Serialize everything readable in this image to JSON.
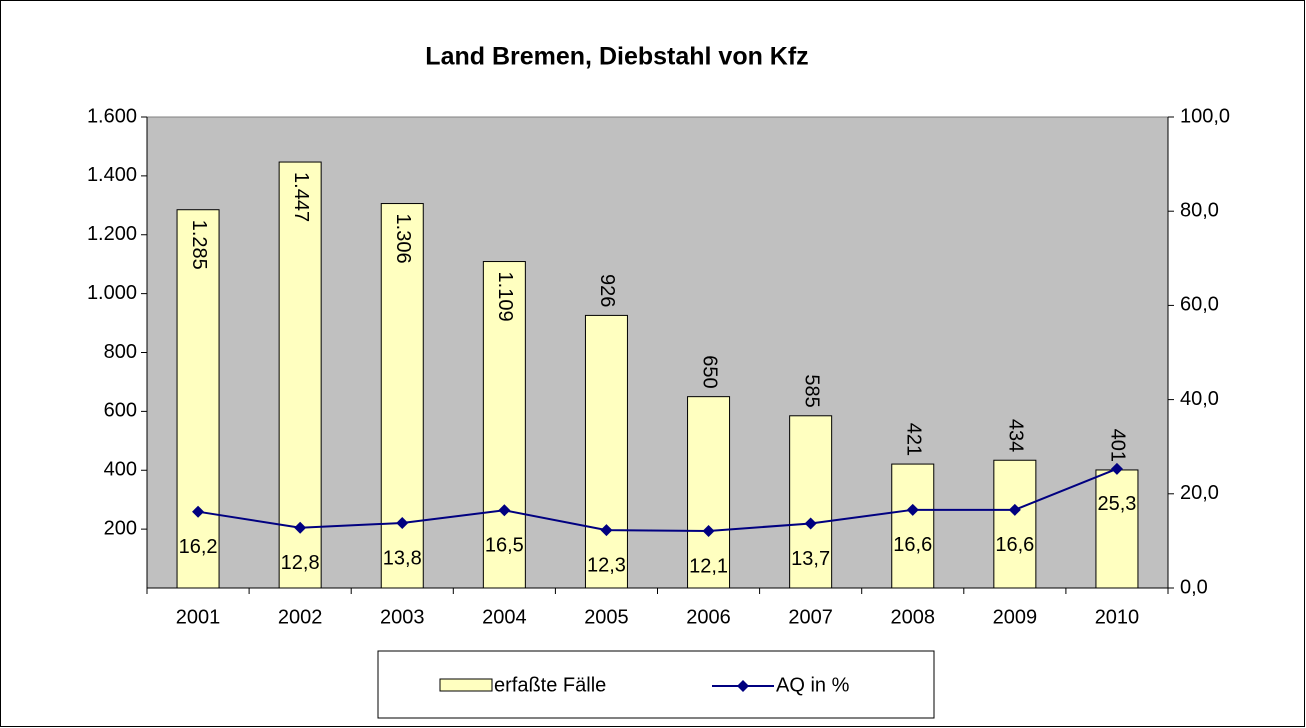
{
  "chart_data": {
    "type": "bar_line",
    "title": "Land Bremen, Diebstahl von Kfz",
    "categories": [
      "2001",
      "2002",
      "2003",
      "2004",
      "2005",
      "2006",
      "2007",
      "2008",
      "2009",
      "2010"
    ],
    "series": [
      {
        "name": "erfaßte Fälle",
        "type": "bar",
        "color": "#ffffc0",
        "values": [
          1285,
          1447,
          1306,
          1109,
          926,
          650,
          585,
          421,
          434,
          401
        ],
        "value_labels": [
          "1.285",
          "1.447",
          "1.306",
          "1.109",
          "926",
          "650",
          "585",
          "421",
          "434",
          "401"
        ]
      },
      {
        "name": "AQ in %",
        "type": "line",
        "axis": "y2",
        "color": "#000080",
        "values": [
          16.2,
          12.8,
          13.8,
          16.5,
          12.3,
          12.1,
          13.7,
          16.6,
          16.6,
          25.3
        ],
        "value_labels": [
          "16,2",
          "12,8",
          "13,8",
          "16,5",
          "12,3",
          "12,1",
          "13,7",
          "16,6",
          "16,6",
          "25,3"
        ]
      }
    ],
    "ylim": [
      0,
      1600
    ],
    "yticks": [
      {
        "value": 200,
        "label": "200"
      },
      {
        "value": 400,
        "label": "400"
      },
      {
        "value": 600,
        "label": "600"
      },
      {
        "value": 800,
        "label": "800"
      },
      {
        "value": 1000,
        "label": "1.000"
      },
      {
        "value": 1200,
        "label": "1.200"
      },
      {
        "value": 1400,
        "label": "1.400"
      },
      {
        "value": 1600,
        "label": "1.600"
      }
    ],
    "y2lim": [
      0,
      100
    ],
    "y2ticks": [
      {
        "value": 0,
        "label": "0,0"
      },
      {
        "value": 20,
        "label": "20,0"
      },
      {
        "value": 40,
        "label": "40,0"
      },
      {
        "value": 60,
        "label": "60,0"
      },
      {
        "value": 80,
        "label": "80,0"
      },
      {
        "value": 100,
        "label": "100,0"
      }
    ],
    "plot_background": "#c0c0c0",
    "legend": "bottom"
  }
}
